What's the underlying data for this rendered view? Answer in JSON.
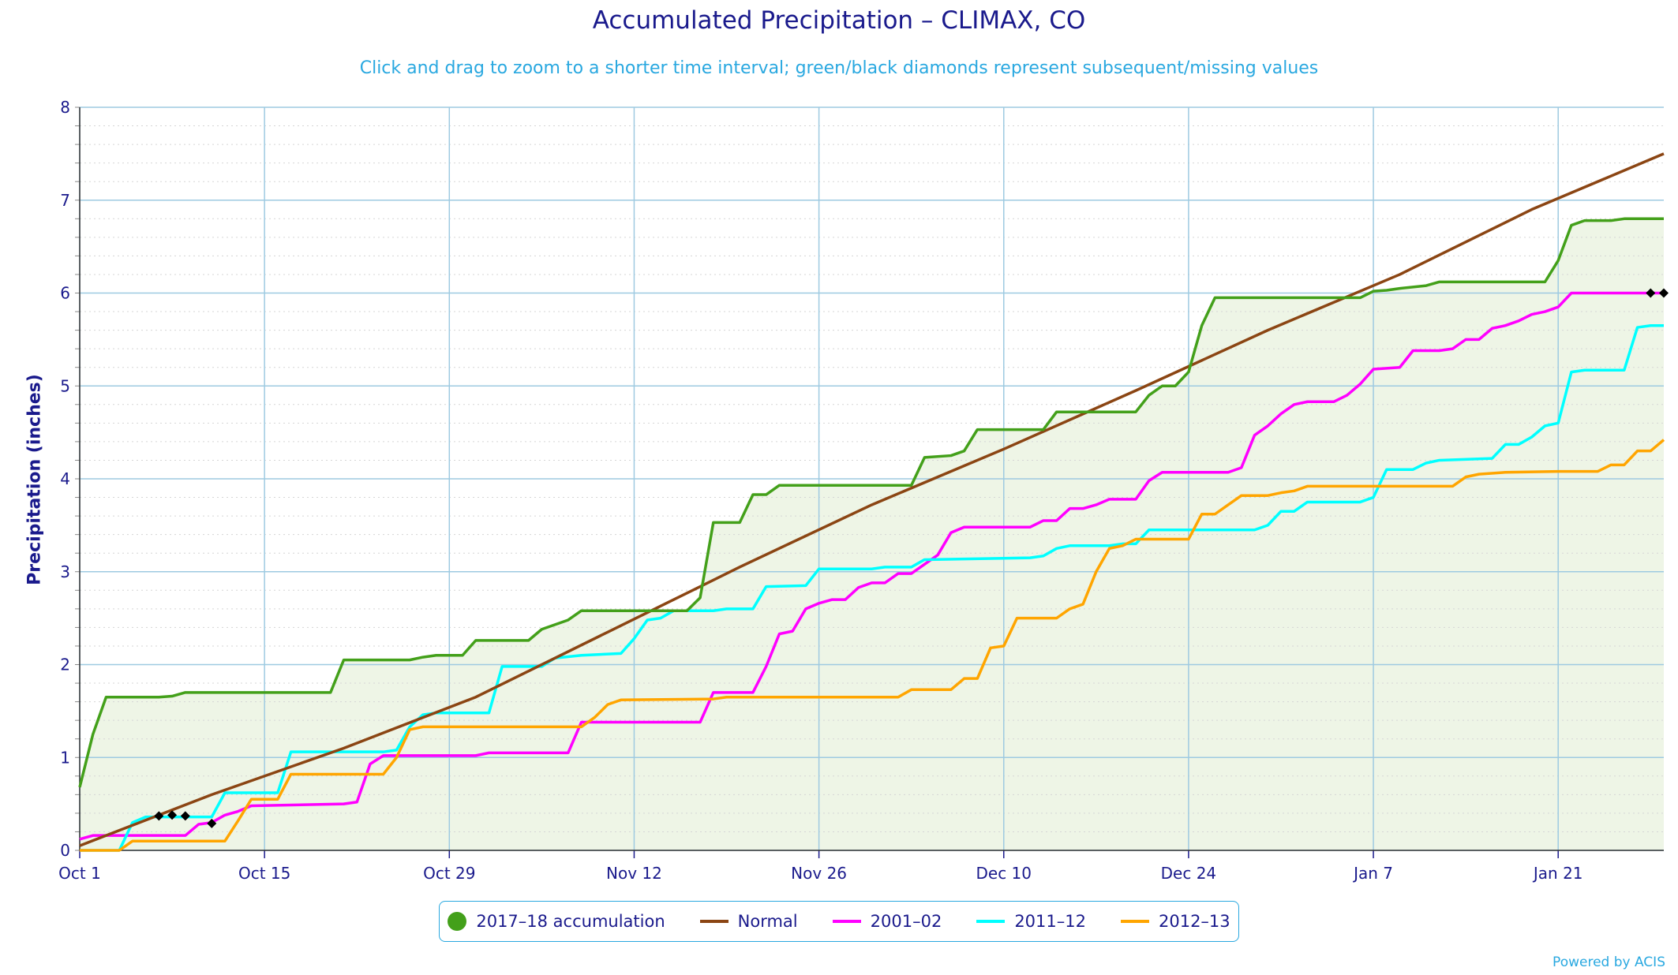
{
  "chart_data": {
    "type": "line",
    "title": "Accumulated Precipitation – CLIMAX, CO",
    "subtitle": "Click and drag to zoom to a shorter time interval; green/black diamonds represent subsequent/missing values",
    "xlabel": "",
    "ylabel": "Precipitation (inches)",
    "ylim": [
      0,
      8
    ],
    "yticks": [
      "0",
      "1",
      "2",
      "3",
      "4",
      "5",
      "6",
      "7",
      "8"
    ],
    "xlim": [
      0,
      120
    ],
    "xticks": [
      {
        "label": "Oct 1",
        "day": 0
      },
      {
        "label": "Oct 15",
        "day": 14
      },
      {
        "label": "Oct 29",
        "day": 28
      },
      {
        "label": "Nov 12",
        "day": 42
      },
      {
        "label": "Nov 26",
        "day": 56
      },
      {
        "label": "Dec 10",
        "day": 70
      },
      {
        "label": "Dec 24",
        "day": 84
      },
      {
        "label": "Jan 7",
        "day": 98
      },
      {
        "label": "Jan 21",
        "day": 112
      }
    ],
    "grid": true,
    "legend_placement": "bottom-center",
    "x_unit_note": "x values are days since Oct 1",
    "series": [
      {
        "name": "2017-18 accumulation",
        "color": "#43a01a",
        "fill": "#eef5e6",
        "points": [
          [
            0,
            0.68
          ],
          [
            1,
            1.25
          ],
          [
            2,
            1.65
          ],
          [
            6,
            1.65
          ],
          [
            7,
            1.66
          ],
          [
            8,
            1.7
          ],
          [
            12,
            1.7
          ],
          [
            19,
            1.7
          ],
          [
            20,
            2.05
          ],
          [
            25,
            2.05
          ],
          [
            26,
            2.08
          ],
          [
            27,
            2.1
          ],
          [
            29,
            2.1
          ],
          [
            30,
            2.26
          ],
          [
            34,
            2.26
          ],
          [
            35,
            2.38
          ],
          [
            37,
            2.48
          ],
          [
            38,
            2.58
          ],
          [
            46,
            2.58
          ],
          [
            47,
            2.72
          ],
          [
            48,
            3.53
          ],
          [
            50,
            3.53
          ],
          [
            51,
            3.83
          ],
          [
            52,
            3.83
          ],
          [
            53,
            3.93
          ],
          [
            63,
            3.93
          ],
          [
            64,
            4.23
          ],
          [
            66,
            4.25
          ],
          [
            67,
            4.3
          ],
          [
            68,
            4.53
          ],
          [
            73,
            4.53
          ],
          [
            74,
            4.72
          ],
          [
            80,
            4.72
          ],
          [
            81,
            4.9
          ],
          [
            82,
            5.0
          ],
          [
            83,
            5.0
          ],
          [
            84,
            5.15
          ],
          [
            85,
            5.65
          ],
          [
            86,
            5.95
          ],
          [
            97,
            5.95
          ],
          [
            98,
            6.02
          ],
          [
            99,
            6.03
          ],
          [
            100,
            6.05
          ],
          [
            102,
            6.08
          ],
          [
            103,
            6.12
          ],
          [
            111,
            6.12
          ],
          [
            112,
            6.35
          ],
          [
            113,
            6.73
          ],
          [
            114,
            6.78
          ],
          [
            116,
            6.78
          ],
          [
            117,
            6.8
          ],
          [
            120,
            6.8
          ]
        ]
      },
      {
        "name": "Normal",
        "color": "#8b4513",
        "points": [
          [
            0,
            0.05
          ],
          [
            10,
            0.6
          ],
          [
            20,
            1.1
          ],
          [
            30,
            1.65
          ],
          [
            40,
            2.35
          ],
          [
            50,
            3.05
          ],
          [
            60,
            3.72
          ],
          [
            70,
            4.32
          ],
          [
            80,
            4.95
          ],
          [
            90,
            5.6
          ],
          [
            100,
            6.2
          ],
          [
            110,
            6.9
          ],
          [
            120,
            7.5
          ]
        ]
      },
      {
        "name": "2001-02",
        "color": "#ff00ff",
        "points": [
          [
            0,
            0.12
          ],
          [
            1,
            0.16
          ],
          [
            8,
            0.16
          ],
          [
            9,
            0.28
          ],
          [
            10,
            0.3
          ],
          [
            11,
            0.38
          ],
          [
            12,
            0.42
          ],
          [
            13,
            0.48
          ],
          [
            20,
            0.5
          ],
          [
            21,
            0.52
          ],
          [
            22,
            0.93
          ],
          [
            23,
            1.02
          ],
          [
            30,
            1.02
          ],
          [
            31,
            1.05
          ],
          [
            37,
            1.05
          ],
          [
            38,
            1.38
          ],
          [
            47,
            1.38
          ],
          [
            48,
            1.7
          ],
          [
            51,
            1.7
          ],
          [
            52,
            1.98
          ],
          [
            53,
            2.33
          ],
          [
            54,
            2.36
          ],
          [
            55,
            2.6
          ],
          [
            56,
            2.66
          ],
          [
            57,
            2.7
          ],
          [
            58,
            2.7
          ],
          [
            59,
            2.83
          ],
          [
            60,
            2.88
          ],
          [
            61,
            2.88
          ],
          [
            62,
            2.98
          ],
          [
            63,
            2.98
          ],
          [
            64,
            3.08
          ],
          [
            65,
            3.18
          ],
          [
            66,
            3.42
          ],
          [
            67,
            3.48
          ],
          [
            72,
            3.48
          ],
          [
            73,
            3.55
          ],
          [
            74,
            3.55
          ],
          [
            75,
            3.68
          ],
          [
            76,
            3.68
          ],
          [
            77,
            3.72
          ],
          [
            78,
            3.78
          ],
          [
            80,
            3.78
          ],
          [
            81,
            3.98
          ],
          [
            82,
            4.07
          ],
          [
            87,
            4.07
          ],
          [
            88,
            4.12
          ],
          [
            89,
            4.47
          ],
          [
            90,
            4.57
          ],
          [
            91,
            4.7
          ],
          [
            92,
            4.8
          ],
          [
            93,
            4.83
          ],
          [
            95,
            4.83
          ],
          [
            96,
            4.9
          ],
          [
            97,
            5.02
          ],
          [
            98,
            5.18
          ],
          [
            100,
            5.2
          ],
          [
            101,
            5.38
          ],
          [
            103,
            5.38
          ],
          [
            104,
            5.4
          ],
          [
            105,
            5.5
          ],
          [
            106,
            5.5
          ],
          [
            107,
            5.62
          ],
          [
            108,
            5.65
          ],
          [
            109,
            5.7
          ],
          [
            110,
            5.77
          ],
          [
            111,
            5.8
          ],
          [
            112,
            5.85
          ],
          [
            113,
            6.0
          ],
          [
            120,
            6.0
          ]
        ]
      },
      {
        "name": "2011-12",
        "color": "#00ffff",
        "points": [
          [
            0,
            0.0
          ],
          [
            3,
            0.0
          ],
          [
            4,
            0.3
          ],
          [
            5,
            0.36
          ],
          [
            10,
            0.36
          ],
          [
            11,
            0.62
          ],
          [
            15,
            0.62
          ],
          [
            16,
            1.06
          ],
          [
            23,
            1.06
          ],
          [
            24,
            1.08
          ],
          [
            25,
            1.33
          ],
          [
            26,
            1.46
          ],
          [
            27,
            1.48
          ],
          [
            31,
            1.48
          ],
          [
            32,
            1.98
          ],
          [
            35,
            1.98
          ],
          [
            36,
            2.07
          ],
          [
            38,
            2.1
          ],
          [
            41,
            2.12
          ],
          [
            42,
            2.28
          ],
          [
            43,
            2.48
          ],
          [
            44,
            2.5
          ],
          [
            45,
            2.58
          ],
          [
            48,
            2.58
          ],
          [
            49,
            2.6
          ],
          [
            51,
            2.6
          ],
          [
            52,
            2.84
          ],
          [
            55,
            2.85
          ],
          [
            56,
            3.03
          ],
          [
            60,
            3.03
          ],
          [
            61,
            3.05
          ],
          [
            63,
            3.05
          ],
          [
            64,
            3.13
          ],
          [
            72,
            3.15
          ],
          [
            73,
            3.17
          ],
          [
            74,
            3.25
          ],
          [
            75,
            3.28
          ],
          [
            78,
            3.28
          ],
          [
            79,
            3.3
          ],
          [
            80,
            3.3
          ],
          [
            81,
            3.45
          ],
          [
            89,
            3.45
          ],
          [
            90,
            3.5
          ],
          [
            91,
            3.65
          ],
          [
            92,
            3.65
          ],
          [
            93,
            3.75
          ],
          [
            97,
            3.75
          ],
          [
            98,
            3.8
          ],
          [
            99,
            4.1
          ],
          [
            101,
            4.1
          ],
          [
            102,
            4.17
          ],
          [
            103,
            4.2
          ],
          [
            107,
            4.22
          ],
          [
            108,
            4.37
          ],
          [
            109,
            4.37
          ],
          [
            110,
            4.45
          ],
          [
            111,
            4.57
          ],
          [
            112,
            4.6
          ],
          [
            113,
            5.15
          ],
          [
            114,
            5.17
          ],
          [
            117,
            5.17
          ],
          [
            118,
            5.63
          ],
          [
            119,
            5.65
          ],
          [
            120,
            5.65
          ]
        ]
      },
      {
        "name": "2012-13",
        "color": "#ffa500",
        "points": [
          [
            0,
            0.0
          ],
          [
            3,
            0.0
          ],
          [
            4,
            0.1
          ],
          [
            11,
            0.1
          ],
          [
            12,
            0.32
          ],
          [
            13,
            0.55
          ],
          [
            15,
            0.55
          ],
          [
            16,
            0.82
          ],
          [
            23,
            0.82
          ],
          [
            24,
            1.0
          ],
          [
            25,
            1.3
          ],
          [
            26,
            1.33
          ],
          [
            38,
            1.33
          ],
          [
            39,
            1.43
          ],
          [
            40,
            1.57
          ],
          [
            41,
            1.62
          ],
          [
            48,
            1.63
          ],
          [
            49,
            1.65
          ],
          [
            62,
            1.65
          ],
          [
            63,
            1.73
          ],
          [
            66,
            1.73
          ],
          [
            67,
            1.85
          ],
          [
            68,
            1.85
          ],
          [
            69,
            2.18
          ],
          [
            70,
            2.2
          ],
          [
            71,
            2.5
          ],
          [
            74,
            2.5
          ],
          [
            75,
            2.6
          ],
          [
            76,
            2.65
          ],
          [
            77,
            3.0
          ],
          [
            78,
            3.25
          ],
          [
            79,
            3.28
          ],
          [
            80,
            3.35
          ],
          [
            84,
            3.35
          ],
          [
            85,
            3.62
          ],
          [
            86,
            3.62
          ],
          [
            87,
            3.72
          ],
          [
            88,
            3.82
          ],
          [
            90,
            3.82
          ],
          [
            91,
            3.85
          ],
          [
            92,
            3.87
          ],
          [
            93,
            3.92
          ],
          [
            104,
            3.92
          ],
          [
            105,
            4.02
          ],
          [
            106,
            4.05
          ],
          [
            108,
            4.07
          ],
          [
            112,
            4.08
          ],
          [
            115,
            4.08
          ],
          [
            116,
            4.15
          ],
          [
            117,
            4.15
          ],
          [
            118,
            4.3
          ],
          [
            119,
            4.3
          ],
          [
            120,
            4.42
          ]
        ]
      }
    ],
    "missing_markers": [
      [
        6,
        0.37
      ],
      [
        7,
        0.38
      ],
      [
        8,
        0.37
      ],
      [
        10,
        0.29
      ],
      [
        119,
        6.0
      ],
      [
        120,
        6.0
      ]
    ]
  },
  "legend": {
    "items": [
      {
        "label": "2017–18 accumulation",
        "color": "#43a01a",
        "style": "dot"
      },
      {
        "label": "Normal",
        "color": "#8b4513",
        "style": "line"
      },
      {
        "label": "2001–02",
        "color": "#ff00ff",
        "style": "line"
      },
      {
        "label": "2011–12",
        "color": "#00ffff",
        "style": "line"
      },
      {
        "label": "2012–13",
        "color": "#ffa500",
        "style": "line"
      }
    ]
  },
  "credit": "Powered by ACIS"
}
